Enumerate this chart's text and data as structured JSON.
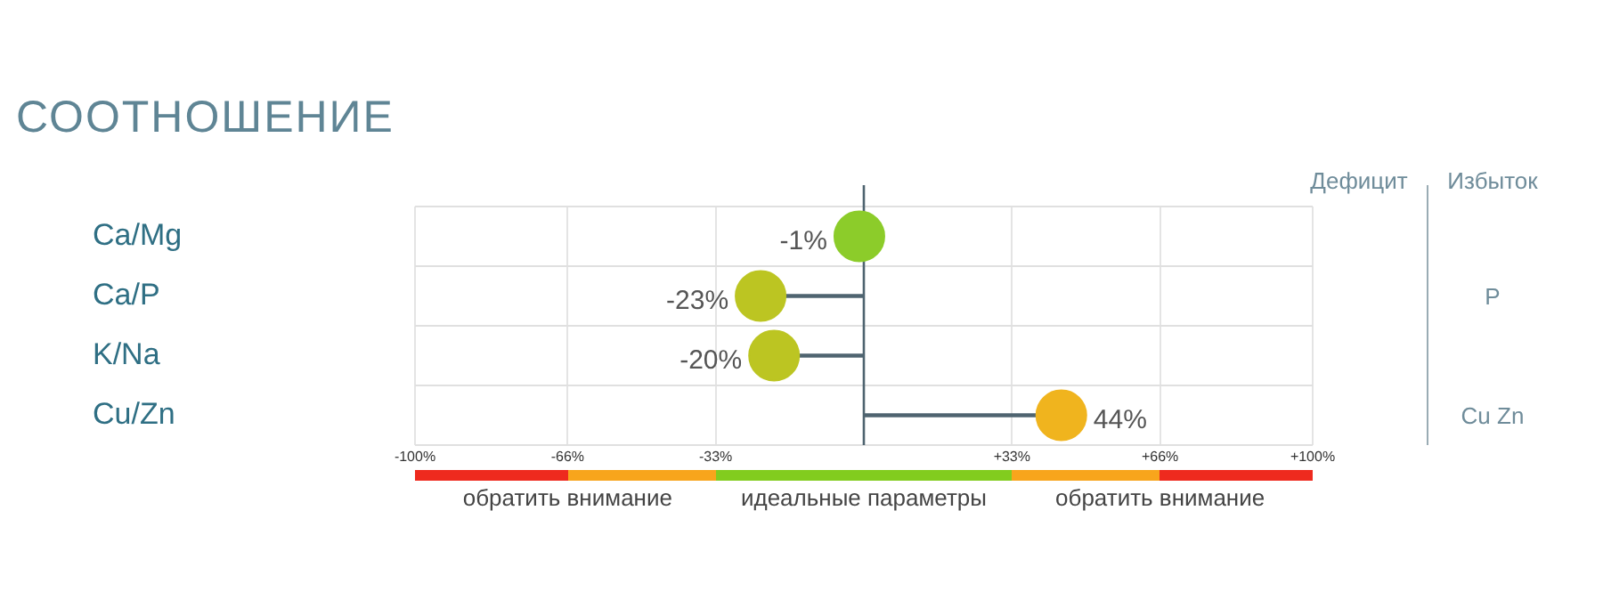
{
  "chart_data": {
    "type": "lollipop",
    "title": "СООТНОШЕНИЕ",
    "orientation": "horizontal",
    "categories": [
      "Ca/Mg",
      "Ca/P",
      "K/Na",
      "Cu/Zn"
    ],
    "values": [
      -1,
      -23,
      -20,
      44
    ],
    "colors": [
      "#8ccc2a",
      "#bcc522",
      "#bcc522",
      "#f0b41e"
    ],
    "color": "#4f6470",
    "value_labels": [
      "-1%",
      "-23%",
      "-20%",
      "44%"
    ],
    "xlim": [
      -100,
      100
    ],
    "xticks": [
      {
        "value": -100,
        "label": "-100%"
      },
      {
        "value": -66,
        "label": "-66%"
      },
      {
        "value": -33,
        "label": "-33%"
      },
      {
        "value": 33,
        "label": "+33%"
      },
      {
        "value": 66,
        "label": "+66%"
      },
      {
        "value": 100,
        "label": "+100%"
      }
    ],
    "grid": true,
    "ref_lines": [
      {
        "axis": "x",
        "value": 0,
        "color": "#4f6470"
      }
    ],
    "annotations": [
      "обратить внимание",
      "идеальные параметры",
      "обратить внимание",
      "Дефицит",
      "Избыток",
      "P",
      "Cu Zn"
    ]
  }
}
